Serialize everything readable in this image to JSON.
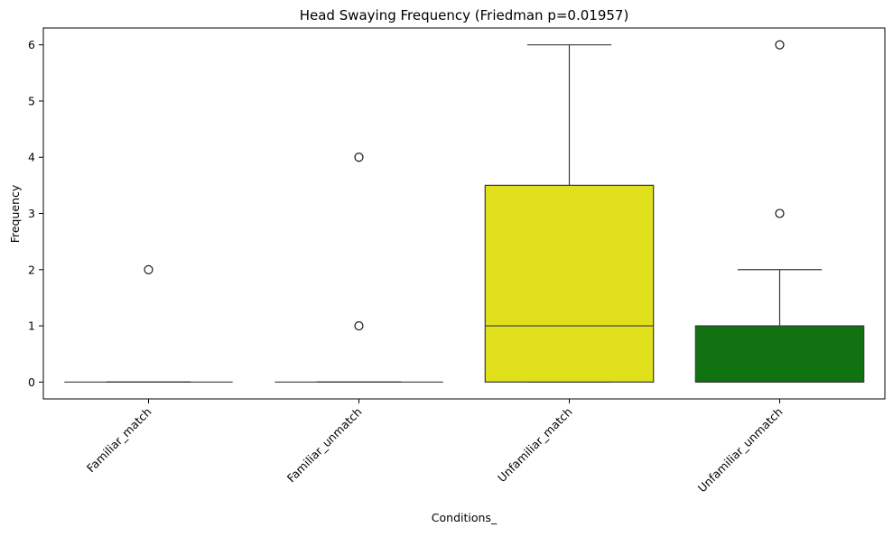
{
  "chart_data": {
    "type": "box",
    "title": "Head Swaying Frequency (Friedman p=0.01957)",
    "xlabel": "Conditions_",
    "ylabel": "Frequency",
    "ylim": [
      -0.3,
      6.3
    ],
    "yticks": [
      0,
      1,
      2,
      3,
      4,
      5,
      6
    ],
    "grid": false,
    "categories": [
      "Familiar_match",
      "Familiar_unmatch",
      "Unfamiliar_match",
      "Unfamiliar_unmatch"
    ],
    "boxes": [
      {
        "category": "Familiar_match",
        "whisker_low": 0,
        "q1": 0,
        "median": 0,
        "q3": 0,
        "whisker_high": 0,
        "outliers": [
          2
        ],
        "color": "#ffffff"
      },
      {
        "category": "Familiar_unmatch",
        "whisker_low": 0,
        "q1": 0,
        "median": 0,
        "q3": 0,
        "whisker_high": 0,
        "outliers": [
          1,
          4
        ],
        "color": "#ffffff"
      },
      {
        "category": "Unfamiliar_match",
        "whisker_low": 0,
        "q1": 0,
        "median": 1,
        "q3": 3.5,
        "whisker_high": 6,
        "outliers": [],
        "color": "#e0e01c"
      },
      {
        "category": "Unfamiliar_unmatch",
        "whisker_low": 0,
        "q1": 0,
        "median": 0,
        "q3": 1,
        "whisker_high": 2,
        "outliers": [
          3,
          6
        ],
        "color": "#107210"
      }
    ]
  }
}
